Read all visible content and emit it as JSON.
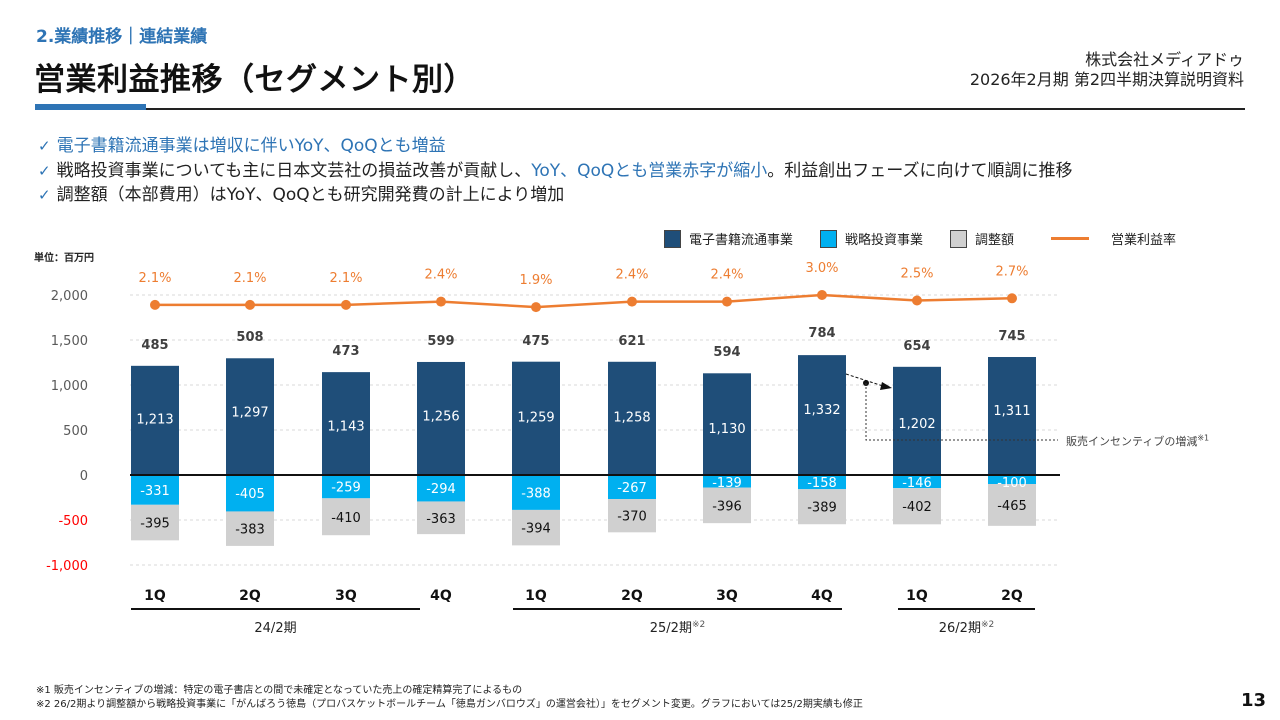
{
  "header": {
    "section": "2.業績推移｜連結業績",
    "title": "営業利益推移（セグメント別）",
    "company": "株式会社メディアドゥ",
    "document": "2026年2月期 第2四半期決算説明資料"
  },
  "bullets": [
    {
      "check_icon": "✓",
      "parts": [
        {
          "text": "電子書籍流通事業は増収に伴いYoY、QoQとも増益",
          "highlight": true
        }
      ]
    },
    {
      "check_icon": "✓",
      "parts": [
        {
          "text": "戦略投資事業についても主に日本文芸社の損益改善が貢献し、",
          "highlight": false
        },
        {
          "text": "YoY、QoQとも営業赤字が縮小",
          "highlight": true
        },
        {
          "text": "。利益創出フェーズに向けて順調に推移",
          "highlight": false
        }
      ]
    },
    {
      "check_icon": "✓",
      "parts": [
        {
          "text": "調整額（本部費用）はYoY、QoQとも研究開発費の計上により増加",
          "highlight": false
        }
      ]
    }
  ],
  "unit_label": "単位：百万円",
  "annotation": {
    "text": "販売インセンティブの増減",
    "mark": "※1"
  },
  "footnotes": [
    "※1 販売インセンティブの増減：特定の電子書店との間で未確定となっていた売上の確定精算完了によるもの",
    "※2 26/2期より調整額から戦略投資事業に「がんばろう徳島（プロバスケットボールチーム「徳島ガンバロウズ」の運営会社）」をセグメント変更。グラフにおいては25/2期実績も修正"
  ],
  "page_number": "13",
  "colors": {
    "ebook": "#1f4e79",
    "strategic": "#00b0f0",
    "adjustment": "#d0d0d0",
    "margin_line": "#ed7d31",
    "accent": "#2e74b5",
    "negative_tick": "#ff0000"
  },
  "chart_data": {
    "type": "bar",
    "stacked": true,
    "title": "営業利益推移（セグメント別）",
    "ylabel": "百万円",
    "ylim": [
      -1000,
      2000
    ],
    "yticks": [
      2000,
      1500,
      1000,
      500,
      0,
      -500,
      -1000
    ],
    "ytick_labels": [
      "2,000",
      "1,500",
      "1,000",
      "500",
      "0",
      "-500",
      "-1,000"
    ],
    "grid": true,
    "legend_position": "top-right",
    "categories": [
      "1Q",
      "2Q",
      "3Q",
      "4Q",
      "1Q",
      "2Q",
      "3Q",
      "4Q",
      "1Q",
      "2Q"
    ],
    "groups": [
      {
        "label": "24/2期",
        "mark": "",
        "count": 4
      },
      {
        "label": "25/2期",
        "mark": "※2",
        "count": 4
      },
      {
        "label": "26/2期",
        "mark": "※2",
        "count": 2
      }
    ],
    "series": [
      {
        "name": "電子書籍流通事業",
        "key": "ebook",
        "values": [
          1213,
          1297,
          1143,
          1256,
          1259,
          1258,
          1130,
          1332,
          1202,
          1311
        ],
        "labels": [
          "1,213",
          "1,297",
          "1,143",
          "1,256",
          "1,259",
          "1,258",
          "1,130",
          "1,332",
          "1,202",
          "1,311"
        ]
      },
      {
        "name": "戦略投資事業",
        "key": "strategic",
        "values": [
          -331,
          -405,
          -259,
          -294,
          -388,
          -267,
          -139,
          -158,
          -146,
          -100
        ],
        "labels": [
          "-331",
          "-405",
          "-259",
          "-294",
          "-388",
          "-267",
          "-139",
          "-158",
          "-146",
          "-100"
        ]
      },
      {
        "name": "調整額",
        "key": "adjustment",
        "values": [
          -395,
          -383,
          -410,
          -363,
          -394,
          -370,
          -396,
          -389,
          -402,
          -465
        ],
        "labels": [
          "-395",
          "-383",
          "-410",
          "-363",
          "-394",
          "-370",
          "-396",
          "-389",
          "-402",
          "-465"
        ]
      }
    ],
    "totals": {
      "name": "営業利益",
      "values": [
        485,
        508,
        473,
        599,
        475,
        621,
        594,
        784,
        654,
        745
      ],
      "labels": [
        "485",
        "508",
        "473",
        "599",
        "475",
        "621",
        "594",
        "784",
        "654",
        "745"
      ]
    },
    "line_series": {
      "name": "営業利益率",
      "unit": "%",
      "values": [
        2.1,
        2.1,
        2.1,
        2.4,
        1.9,
        2.4,
        2.4,
        3.0,
        2.5,
        2.7
      ],
      "labels": [
        "2.1%",
        "2.1%",
        "2.1%",
        "2.4%",
        "1.9%",
        "2.4%",
        "2.4%",
        "3.0%",
        "2.5%",
        "2.7%"
      ]
    }
  }
}
